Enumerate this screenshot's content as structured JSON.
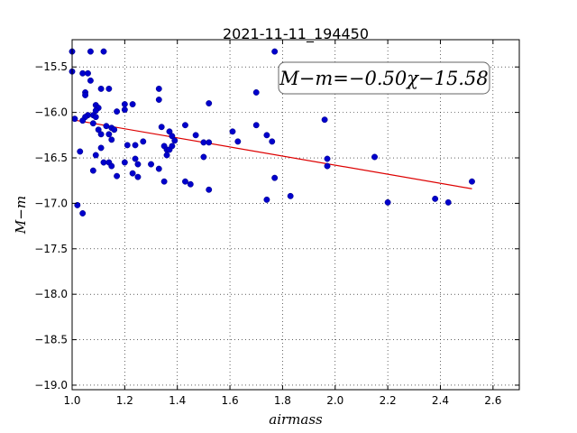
{
  "chart_data": {
    "type": "scatter",
    "title": "2021-11-11_194450",
    "xlabel": "airmass",
    "ylabel": "M−m",
    "xlim": [
      1.0,
      2.7
    ],
    "ylim": [
      -19.05,
      -15.2
    ],
    "xticks": [
      1.0,
      1.2,
      1.4,
      1.6,
      1.8,
      2.0,
      2.2,
      2.4,
      2.6
    ],
    "xtick_labels": [
      "1.0",
      "1.2",
      "1.4",
      "1.6",
      "1.8",
      "2.0",
      "2.2",
      "2.4",
      "2.6"
    ],
    "yticks": [
      -15.5,
      -16.0,
      -16.5,
      -17.0,
      -17.5,
      -18.0,
      -18.5,
      -19.0
    ],
    "ytick_labels": [
      "−15.5",
      "−16.0",
      "−16.5",
      "−17.0",
      "−17.5",
      "−18.0",
      "−18.5",
      "−19.0"
    ],
    "grid": true,
    "annotation": "M−m=−0.50χ−15.58",
    "fit": {
      "slope": -0.5,
      "intercept": -15.58,
      "x_range": [
        1.0,
        2.52
      ],
      "color": "#dd0000"
    },
    "point_color": "#0000cc",
    "points": [
      [
        1.0,
        -15.33
      ],
      [
        1.0,
        -15.55
      ],
      [
        1.04,
        -15.57
      ],
      [
        1.06,
        -15.57
      ],
      [
        1.07,
        -15.33
      ],
      [
        1.12,
        -15.33
      ],
      [
        1.14,
        -15.74
      ],
      [
        1.11,
        -15.74
      ],
      [
        1.05,
        -15.78
      ],
      [
        1.05,
        -15.81
      ],
      [
        1.07,
        -15.65
      ],
      [
        1.09,
        -15.92
      ],
      [
        1.1,
        -15.95
      ],
      [
        1.09,
        -15.98
      ],
      [
        1.08,
        -16.03
      ],
      [
        1.06,
        -16.03
      ],
      [
        1.05,
        -16.05
      ],
      [
        1.09,
        -16.05
      ],
      [
        1.01,
        -16.07
      ],
      [
        1.04,
        -16.09
      ],
      [
        1.08,
        -16.12
      ],
      [
        1.1,
        -16.19
      ],
      [
        1.13,
        -16.15
      ],
      [
        1.15,
        -16.17
      ],
      [
        1.16,
        -16.19
      ],
      [
        1.14,
        -16.24
      ],
      [
        1.11,
        -16.24
      ],
      [
        1.15,
        -16.3
      ],
      [
        1.17,
        -15.99
      ],
      [
        1.2,
        -15.97
      ],
      [
        1.2,
        -15.91
      ],
      [
        1.23,
        -15.91
      ],
      [
        1.11,
        -16.39
      ],
      [
        1.03,
        -16.43
      ],
      [
        1.09,
        -16.47
      ],
      [
        1.12,
        -16.55
      ],
      [
        1.14,
        -16.55
      ],
      [
        1.15,
        -16.59
      ],
      [
        1.08,
        -16.64
      ],
      [
        1.17,
        -16.7
      ],
      [
        1.21,
        -16.36
      ],
      [
        1.24,
        -16.36
      ],
      [
        1.27,
        -16.32
      ],
      [
        1.2,
        -16.55
      ],
      [
        1.24,
        -16.51
      ],
      [
        1.25,
        -16.57
      ],
      [
        1.23,
        -16.67
      ],
      [
        1.25,
        -16.71
      ],
      [
        1.3,
        -16.57
      ],
      [
        1.33,
        -16.62
      ],
      [
        1.33,
        -15.74
      ],
      [
        1.33,
        -15.86
      ],
      [
        1.34,
        -16.16
      ],
      [
        1.37,
        -16.21
      ],
      [
        1.38,
        -16.26
      ],
      [
        1.39,
        -16.31
      ],
      [
        1.35,
        -16.37
      ],
      [
        1.36,
        -16.41
      ],
      [
        1.37,
        -16.41
      ],
      [
        1.38,
        -16.37
      ],
      [
        1.36,
        -16.47
      ],
      [
        1.35,
        -16.76
      ],
      [
        1.43,
        -16.14
      ],
      [
        1.47,
        -16.25
      ],
      [
        1.5,
        -16.33
      ],
      [
        1.52,
        -16.33
      ],
      [
        1.5,
        -16.49
      ],
      [
        1.43,
        -16.76
      ],
      [
        1.45,
        -16.79
      ],
      [
        1.52,
        -15.9
      ],
      [
        1.52,
        -16.85
      ],
      [
        1.61,
        -16.21
      ],
      [
        1.63,
        -16.32
      ],
      [
        1.7,
        -15.78
      ],
      [
        1.7,
        -16.14
      ],
      [
        1.74,
        -16.25
      ],
      [
        1.76,
        -16.32
      ],
      [
        1.77,
        -15.33
      ],
      [
        1.77,
        -16.72
      ],
      [
        1.74,
        -16.96
      ],
      [
        1.83,
        -16.92
      ],
      [
        1.96,
        -16.08
      ],
      [
        1.97,
        -16.51
      ],
      [
        1.97,
        -16.59
      ],
      [
        2.15,
        -16.49
      ],
      [
        2.2,
        -16.99
      ],
      [
        2.38,
        -16.95
      ],
      [
        2.43,
        -16.99
      ],
      [
        2.52,
        -16.76
      ],
      [
        1.02,
        -17.02
      ],
      [
        1.04,
        -17.11
      ]
    ]
  }
}
